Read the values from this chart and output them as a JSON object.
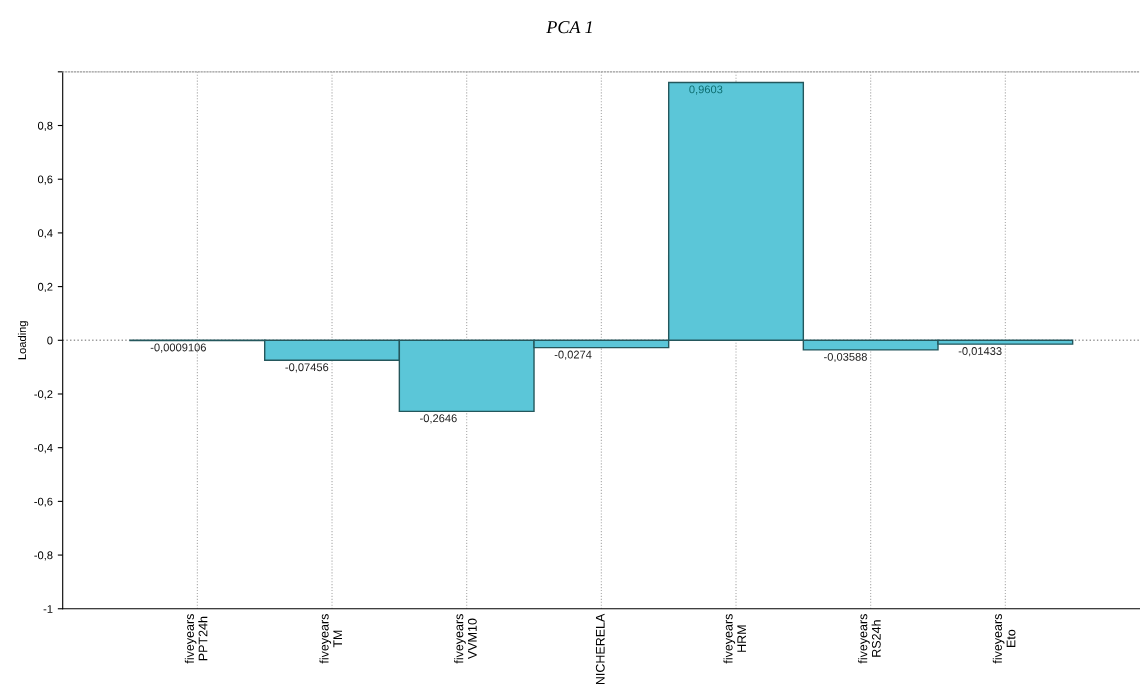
{
  "chart_data": {
    "type": "bar",
    "title": "PCA 1",
    "ylabel": "Loading",
    "categories": [
      "fiveyears\nPPT24h",
      "fiveyears\nTM",
      "fiveyears\nVVM10",
      "NICHERELA",
      "fiveyears\nHRM",
      "fiveyears\nRS24h",
      "fiveyears\nEto"
    ],
    "values": [
      -0.0009106,
      -0.07456,
      -0.2646,
      -0.0274,
      0.9603,
      -0.03588,
      -0.01433
    ],
    "value_labels": [
      "-0,0009106",
      "-0,07456",
      "-0,2646",
      "-0,0274",
      "0,9603",
      "-0,03588",
      "-0,01433"
    ],
    "color": "#5bc6d8",
    "ylim": [
      -1,
      1
    ],
    "yticks": [
      {
        "value": -1,
        "label": "-1"
      },
      {
        "value": -0.8,
        "label": "-0,8"
      },
      {
        "value": -0.6,
        "label": "-0,6"
      },
      {
        "value": -0.4,
        "label": "-0,4"
      },
      {
        "value": -0.2,
        "label": "-0,2"
      },
      {
        "value": 0,
        "label": "0"
      },
      {
        "value": 0.2,
        "label": "0,2"
      },
      {
        "value": 0.4,
        "label": "0,4"
      },
      {
        "value": 0.6,
        "label": "0,6"
      },
      {
        "value": 0.8,
        "label": "0,8"
      },
      {
        "value": 1,
        "label": null
      }
    ],
    "ref_lines": [
      {
        "axis": "y",
        "value": 0,
        "color": "#999999",
        "line_style": "dotted"
      }
    ],
    "grid": "x"
  }
}
